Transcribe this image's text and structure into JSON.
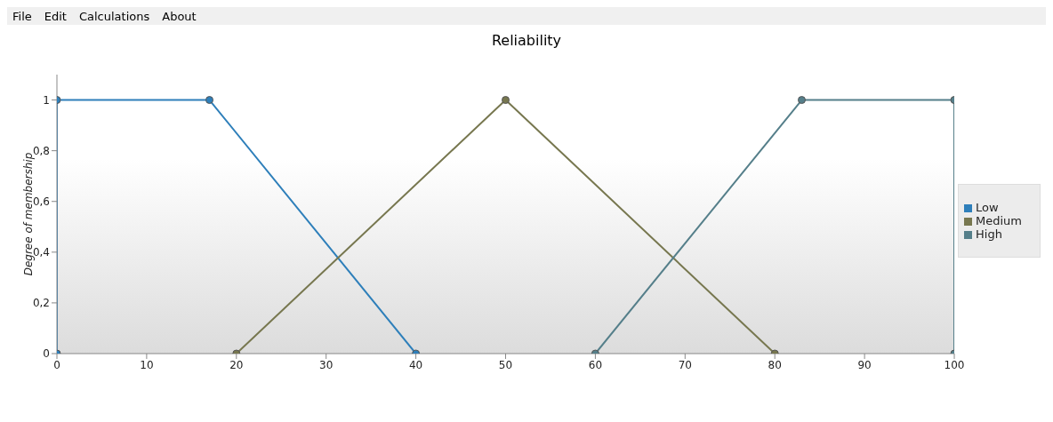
{
  "chart_data": {
    "type": "line",
    "title": "Reliability",
    "ylabel": "Degree of membership",
    "annotations": [
      "File",
      "Edit",
      "Calculations",
      "About"
    ],
    "series": [
      {
        "name": "Low",
        "color": "#2e7fba",
        "x": [
          0,
          0,
          17,
          40
        ],
        "values": [
          0,
          1,
          1,
          0
        ]
      },
      {
        "name": "Medium",
        "color": "#77774f",
        "x": [
          20,
          50,
          80
        ],
        "values": [
          0,
          1,
          0
        ]
      },
      {
        "name": "High",
        "color": "#557f8a",
        "x": [
          60,
          83,
          100,
          100
        ],
        "values": [
          0,
          1,
          1,
          0
        ]
      }
    ],
    "xlim": [
      0,
      100
    ],
    "xticks": [
      0,
      10,
      20,
      30,
      40,
      50,
      60,
      70,
      80,
      90,
      100
    ],
    "ylim": [
      0,
      1.1
    ],
    "yticks": [
      {
        "value": 0,
        "label": "0"
      },
      {
        "value": 0.2,
        "label": "0,2"
      },
      {
        "value": 0.4,
        "label": "0,4"
      },
      {
        "value": 0.6,
        "label": "0,6"
      },
      {
        "value": 0.8,
        "label": "0,8"
      },
      {
        "value": 1,
        "label": "1"
      }
    ],
    "grid": false,
    "legend": "right",
    "marker": "circle",
    "line_style": "solid"
  }
}
